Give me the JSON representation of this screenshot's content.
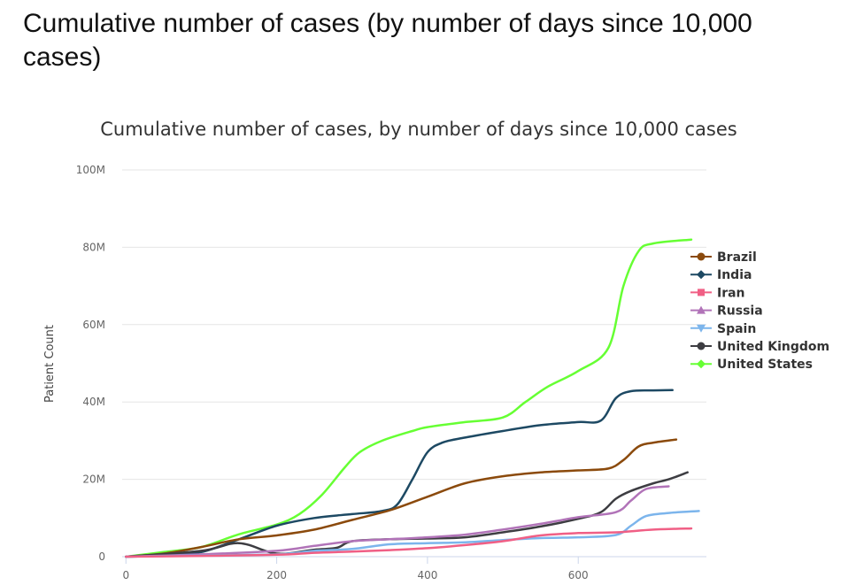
{
  "page": {
    "title": "Cumulative number of cases (by number of days since 10,000 cases)"
  },
  "chart_data": {
    "type": "line",
    "title": "Cumulative number of cases, by number of days since 10,000 cases",
    "xlabel": "",
    "ylabel": "Patient Count",
    "xlim": [
      -5,
      770
    ],
    "ylim": [
      0,
      100000000
    ],
    "x_ticks": [
      0,
      200,
      400,
      600
    ],
    "y_ticks": [
      0,
      20000000,
      40000000,
      60000000,
      80000000,
      100000000
    ],
    "y_tick_labels": [
      "0",
      "20M",
      "40M",
      "60M",
      "80M",
      "100M"
    ],
    "grid": true,
    "legend_position": "right",
    "series": [
      {
        "name": "United States",
        "color": "#66ff33",
        "x": [
          0,
          50,
          100,
          150,
          200,
          230,
          260,
          290,
          310,
          340,
          380,
          400,
          450,
          500,
          530,
          560,
          600,
          640,
          660,
          680,
          700,
          750
        ],
        "y": [
          0,
          1200000,
          2500000,
          5800000,
          8300000,
          11000000,
          16000000,
          23000000,
          27000000,
          30000000,
          32500000,
          33500000,
          34800000,
          36000000,
          40000000,
          44000000,
          48000000,
          54000000,
          70000000,
          79000000,
          81000000,
          82000000
        ]
      },
      {
        "name": "India",
        "color": "#1d4963",
        "x": [
          0,
          50,
          100,
          150,
          200,
          250,
          300,
          340,
          360,
          380,
          400,
          420,
          450,
          500,
          550,
          600,
          630,
          650,
          670,
          700,
          725
        ],
        "y": [
          0,
          300000,
          1200000,
          4500000,
          8000000,
          10000000,
          11000000,
          11800000,
          13500000,
          20000000,
          27000000,
          29500000,
          30800000,
          32500000,
          34000000,
          34800000,
          35200000,
          41000000,
          42800000,
          43000000,
          43100000
        ]
      },
      {
        "name": "Brazil",
        "color": "#8b4a0c",
        "x": [
          0,
          50,
          100,
          150,
          200,
          250,
          300,
          350,
          400,
          450,
          500,
          550,
          600,
          640,
          660,
          680,
          700,
          730
        ],
        "y": [
          0,
          800000,
          2500000,
          4500000,
          5500000,
          7000000,
          9500000,
          12000000,
          15500000,
          19000000,
          20800000,
          21800000,
          22300000,
          22800000,
          25000000,
          28500000,
          29500000,
          30300000
        ]
      },
      {
        "name": "United Kingdom",
        "color": "#3d3d42",
        "x": [
          0,
          100,
          150,
          200,
          250,
          280,
          300,
          350,
          400,
          450,
          500,
          550,
          600,
          630,
          650,
          670,
          700,
          720,
          745
        ],
        "y": [
          0,
          1500000,
          3500000,
          800000,
          1800000,
          2300000,
          4000000,
          4500000,
          4700000,
          5000000,
          6300000,
          7800000,
          9800000,
          11500000,
          15000000,
          17000000,
          19000000,
          20000000,
          21800000
        ]
      },
      {
        "name": "Russia",
        "color": "#b173b8",
        "x": [
          0,
          100,
          200,
          250,
          300,
          350,
          400,
          450,
          500,
          550,
          600,
          650,
          670,
          690,
          720
        ],
        "y": [
          0,
          600000,
          1500000,
          2800000,
          4000000,
          4500000,
          5000000,
          5700000,
          7000000,
          8500000,
          10200000,
          11500000,
          14500000,
          17500000,
          18200000
        ]
      },
      {
        "name": "Spain",
        "color": "#7cb5ec",
        "x": [
          0,
          100,
          200,
          250,
          300,
          350,
          400,
          450,
          500,
          550,
          600,
          650,
          670,
          690,
          720,
          760
        ],
        "y": [
          0,
          300000,
          600000,
          1500000,
          2000000,
          3200000,
          3500000,
          3700000,
          4300000,
          4800000,
          5000000,
          5600000,
          8000000,
          10500000,
          11300000,
          11800000
        ]
      },
      {
        "name": "Iran",
        "color": "#f05f85",
        "x": [
          0,
          100,
          200,
          250,
          300,
          350,
          400,
          450,
          500,
          550,
          600,
          650,
          700,
          750
        ],
        "y": [
          0,
          200000,
          500000,
          1000000,
          1300000,
          1700000,
          2200000,
          3000000,
          4000000,
          5500000,
          6100000,
          6300000,
          7000000,
          7300000
        ]
      }
    ],
    "legend_order": [
      "Brazil",
      "India",
      "Iran",
      "Russia",
      "Spain",
      "United Kingdom",
      "United States"
    ],
    "legend_markers": {
      "Brazil": "circle",
      "India": "diamond",
      "Iran": "square",
      "Russia": "triangle",
      "Spain": "triangle-down",
      "United Kingdom": "circle",
      "United States": "diamond"
    }
  }
}
